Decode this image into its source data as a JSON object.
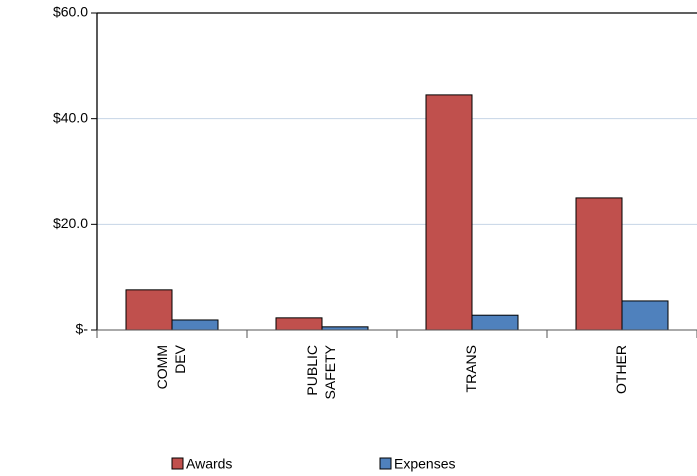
{
  "chart_data": {
    "type": "bar",
    "categories": [
      "COMM DEV",
      "PUBLIC SAFETY",
      "TRANS",
      "OTHER"
    ],
    "series": [
      {
        "name": "Awards",
        "color": "#c0504d",
        "values": [
          7.6,
          2.3,
          44.5,
          25.0
        ]
      },
      {
        "name": "Expenses",
        "color": "#4f81bd",
        "values": [
          1.9,
          0.6,
          2.8,
          5.5
        ]
      }
    ],
    "ylim": [
      0,
      60
    ],
    "yticks": [
      {
        "value": 0,
        "label": "$-"
      },
      {
        "value": 20,
        "label": "$20.0"
      },
      {
        "value": 40,
        "label": "$40.0"
      },
      {
        "value": 60,
        "label": "$60.0"
      }
    ],
    "grid": true,
    "legend": "bottom"
  }
}
